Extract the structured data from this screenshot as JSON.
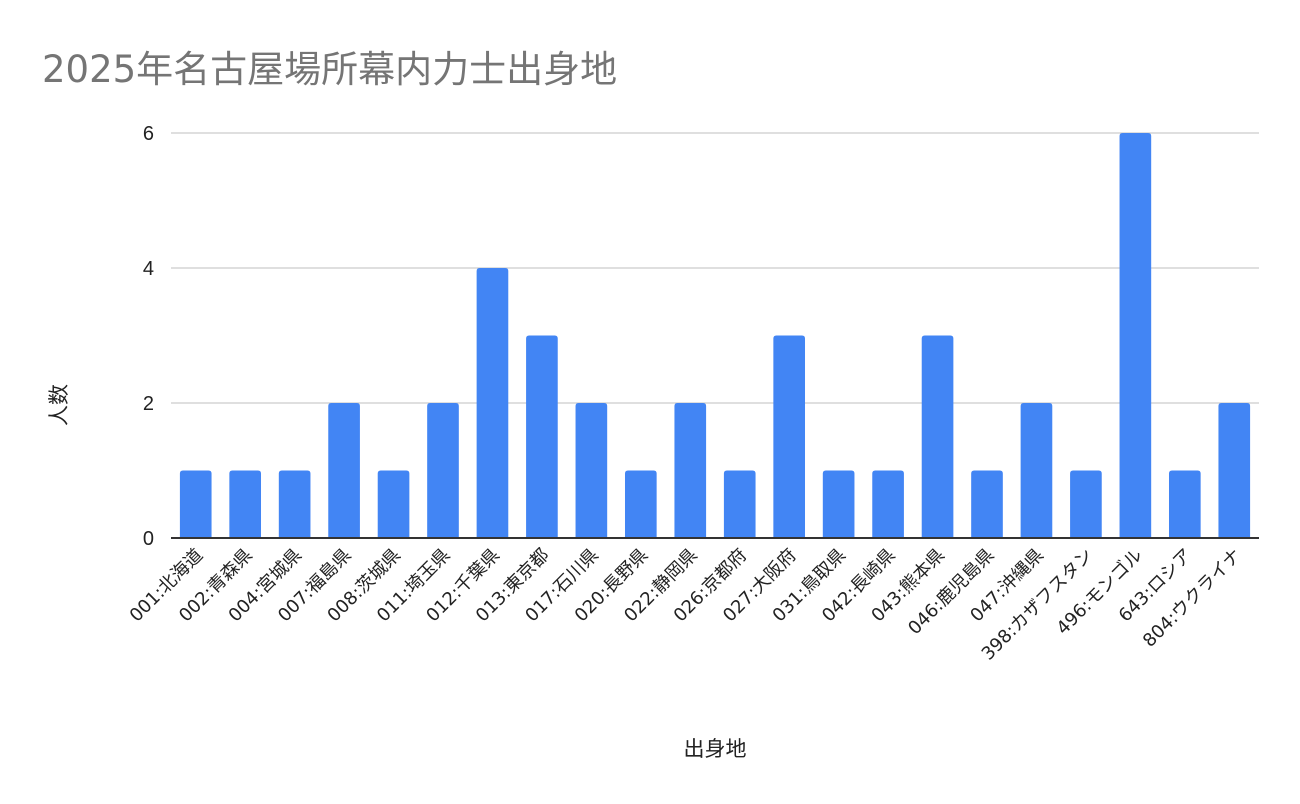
{
  "chart_data": {
    "type": "bar",
    "title": "2025年名古屋場所幕内力士出身地",
    "xlabel": "出身地",
    "ylabel": "人数",
    "ylim": [
      0,
      6
    ],
    "yticks": [
      0,
      2,
      4,
      6
    ],
    "grid": true,
    "legend": "none",
    "bar_color": "#4285f4",
    "categories": [
      "001:北海道",
      "002:青森県",
      "004:宮城県",
      "007:福島県",
      "008:茨城県",
      "011:埼玉県",
      "012:千葉県",
      "013:東京都",
      "017:石川県",
      "020:長野県",
      "022:静岡県",
      "026:京都府",
      "027:大阪府",
      "031:鳥取県",
      "042:長崎県",
      "043:熊本県",
      "046:鹿児島県",
      "047:沖縄県",
      "398:カザフスタン",
      "496:モンゴル",
      "643:ロシア",
      "804:ウクライナ"
    ],
    "values": [
      1,
      1,
      1,
      2,
      1,
      2,
      4,
      3,
      2,
      1,
      2,
      1,
      3,
      1,
      1,
      3,
      1,
      2,
      1,
      6,
      1,
      2
    ]
  }
}
